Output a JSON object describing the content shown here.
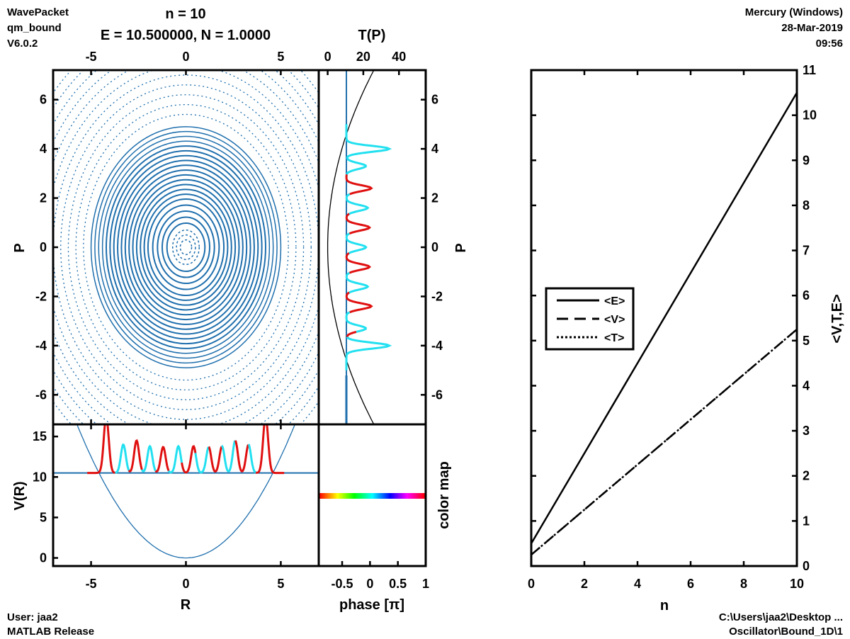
{
  "header": {
    "left": [
      "WavePacket",
      "qm_bound",
      "V6.0.2"
    ],
    "right": [
      "Mercury (Windows)",
      "28-Mar-2019",
      "09:56"
    ],
    "title_n": "n = 10",
    "title_e": "E = 10.500000, N = 1.0000",
    "title_tp": "T(P)"
  },
  "footer": {
    "left": [
      "User: jaa2",
      "MATLAB Release"
    ],
    "right": [
      "C:\\Users\\jaa2\\Desktop ...",
      "Oscillator\\Bound_1D\\1"
    ]
  },
  "colors": {
    "contour": "#1f6fad",
    "wave_red": "#e01010",
    "wave_cyan": "#22e0f0",
    "axis": "#000000"
  },
  "chart_data": [
    {
      "id": "phase_space",
      "type": "contour",
      "xlabel": "",
      "ylabel": "P",
      "xlim": [
        -7,
        7
      ],
      "ylim": [
        -7.2,
        7.2
      ],
      "xticks": [
        -5,
        0,
        5
      ],
      "yticks": [
        -6,
        -4,
        -2,
        0,
        2,
        4,
        6
      ]
    },
    {
      "id": "momentum_density",
      "type": "line",
      "xlabel": "",
      "ylabel": "P",
      "top_label": "T(P)",
      "top_xlim": [
        -5,
        55
      ],
      "top_ticks": [
        0,
        20,
        40
      ],
      "xlim": [
        -1.2,
        1
      ],
      "ylim": [
        -7.2,
        7.2
      ],
      "yticks": [
        -6,
        -4,
        -2,
        0,
        2,
        4,
        6
      ],
      "peaks_P": [
        -4,
        -3.3,
        -2.4,
        -1.6,
        -0.8,
        0,
        0.8,
        1.6,
        2.4,
        3.3,
        4
      ]
    },
    {
      "id": "position_density",
      "type": "line",
      "xlabel": "R",
      "ylabel": "V(R)",
      "xlim": [
        -7,
        7
      ],
      "ylim": [
        -1,
        16.5
      ],
      "xticks": [
        -5,
        0,
        5
      ],
      "yticks": [
        0,
        5,
        10,
        15
      ],
      "energy_level": 10.5,
      "potential": "V = R^2/2",
      "peaks_R": [
        -4.2,
        -3.3,
        -2.6,
        -1.9,
        -1.2,
        -0.4,
        0.4,
        1.2,
        1.9,
        2.6,
        3.3,
        4.2
      ]
    },
    {
      "id": "colormap",
      "type": "colorbar",
      "xlabel": "phase [π]",
      "ylabel": "color map",
      "xlim": [
        -1,
        1
      ],
      "xticks": [
        -0.5,
        0,
        0.5,
        1
      ],
      "xtick_labels": [
        "-0.5",
        "0",
        "0.5",
        "1"
      ]
    },
    {
      "id": "expectation_values",
      "type": "line",
      "xlabel": "n",
      "ylabel": "<V,T,E>",
      "xlim": [
        0,
        10
      ],
      "ylim": [
        0,
        11
      ],
      "xticks": [
        0,
        2,
        4,
        6,
        8,
        10
      ],
      "yticks": [
        0,
        1,
        2,
        3,
        4,
        5,
        6,
        7,
        8,
        9,
        10,
        11
      ],
      "legend_position": "left-middle",
      "series": [
        {
          "name": "<E>",
          "style": "solid",
          "x": [
            0,
            10
          ],
          "values": [
            0.5,
            10.5
          ]
        },
        {
          "name": "<V>",
          "style": "dashed",
          "x": [
            0,
            10
          ],
          "values": [
            0.25,
            5.25
          ]
        },
        {
          "name": "<T>",
          "style": "dotted",
          "x": [
            0,
            10
          ],
          "values": [
            0.25,
            5.25
          ]
        }
      ]
    }
  ]
}
